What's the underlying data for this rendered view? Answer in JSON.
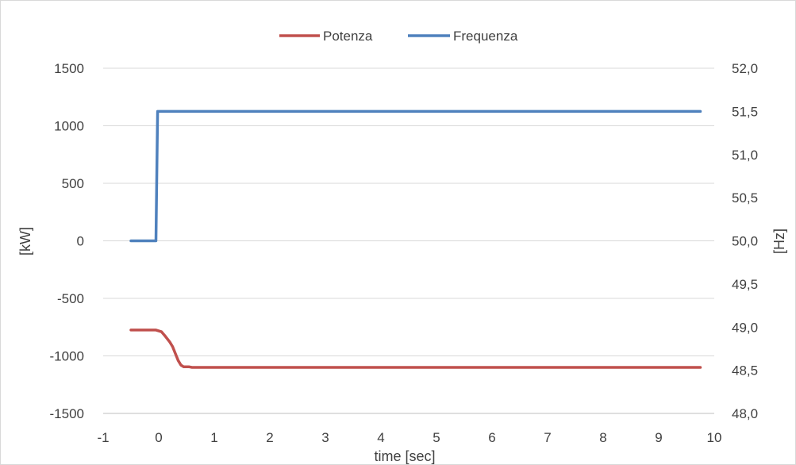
{
  "chart_data": {
    "type": "line",
    "xlabel": "time [sec]",
    "ylabel": "[kW]",
    "y2label": "[Hz]",
    "xlim": [
      -1,
      10
    ],
    "ylim": [
      -1500,
      1500
    ],
    "y2lim": [
      48.0,
      52.0
    ],
    "x_ticks": [
      "-1",
      "0",
      "1",
      "2",
      "3",
      "4",
      "5",
      "6",
      "7",
      "8",
      "9",
      "10"
    ],
    "y_ticks": [
      "1500",
      "1000",
      "500",
      "0",
      "-500",
      "-1000",
      "-1500"
    ],
    "y2_ticks": [
      "52,0",
      "51,5",
      "51,0",
      "50,5",
      "50,0",
      "49,5",
      "49,0",
      "48,5",
      "48,0"
    ],
    "grid": "horizontal",
    "legend_position": "top",
    "series": [
      {
        "name": "Potenza",
        "axis": "left",
        "color": "#c0504d",
        "points": [
          [
            -0.5,
            -775
          ],
          [
            -0.05,
            -775
          ],
          [
            0.05,
            -790
          ],
          [
            0.12,
            -830
          ],
          [
            0.2,
            -880
          ],
          [
            0.25,
            -920
          ],
          [
            0.3,
            -980
          ],
          [
            0.35,
            -1040
          ],
          [
            0.4,
            -1080
          ],
          [
            0.45,
            -1095
          ],
          [
            0.55,
            -1095
          ],
          [
            0.6,
            -1100
          ],
          [
            9.75,
            -1100
          ]
        ]
      },
      {
        "name": "Frequenza",
        "axis": "right",
        "color": "#4f81bd",
        "points": [
          [
            -0.5,
            50.0
          ],
          [
            -0.05,
            50.0
          ],
          [
            -0.02,
            51.5
          ],
          [
            9.75,
            51.5
          ]
        ]
      }
    ]
  }
}
